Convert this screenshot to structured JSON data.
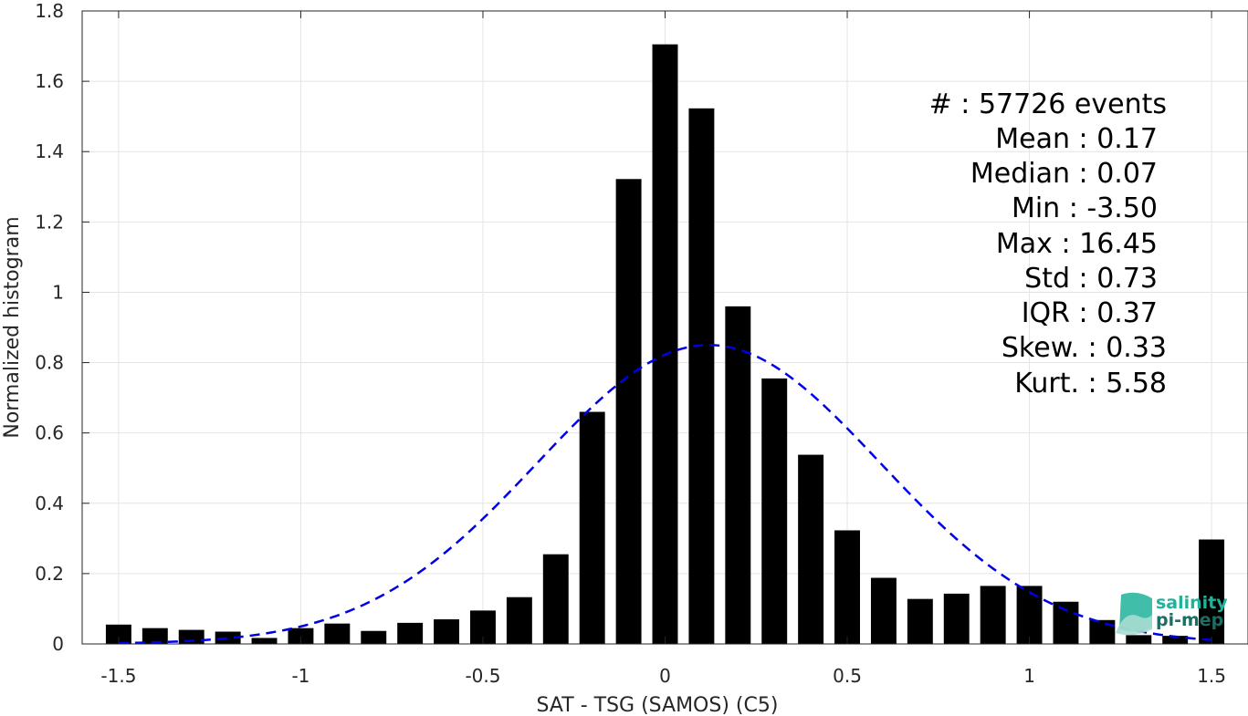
{
  "chart_data": {
    "type": "bar",
    "xlabel": "SAT - TSG (SAMOS) (C5)",
    "ylabel": "Normalized histogram",
    "xlim": [
      -1.6,
      1.6
    ],
    "ylim": [
      0,
      1.8
    ],
    "xticks": [
      -1.5,
      -1,
      -0.5,
      0,
      0.5,
      1,
      1.5
    ],
    "xtick_labels": [
      "-1.5",
      "-1",
      "-0.5",
      "0",
      "0.5",
      "1",
      "1.5"
    ],
    "yticks": [
      0,
      0.2,
      0.4,
      0.6,
      0.8,
      1,
      1.2,
      1.4,
      1.6,
      1.8
    ],
    "ytick_labels": [
      "0",
      "0.2",
      "0.4",
      "0.6",
      "0.8",
      "1",
      "1.2",
      "1.4",
      "1.6",
      "1.8"
    ],
    "grid": true,
    "bar_width": 0.07,
    "bar_color": "#000000",
    "x": [
      -1.5,
      -1.4,
      -1.3,
      -1.2,
      -1.1,
      -1.0,
      -0.9,
      -0.8,
      -0.7,
      -0.6,
      -0.5,
      -0.4,
      -0.3,
      -0.2,
      -0.1,
      0.0,
      0.1,
      0.2,
      0.3,
      0.4,
      0.5,
      0.6,
      0.7,
      0.8,
      0.9,
      1.0,
      1.1,
      1.2,
      1.3,
      1.4,
      1.5
    ],
    "values": [
      0.055,
      0.045,
      0.04,
      0.035,
      0.017,
      0.045,
      0.058,
      0.037,
      0.06,
      0.07,
      0.095,
      0.133,
      0.255,
      0.66,
      1.322,
      1.705,
      1.523,
      0.96,
      0.755,
      0.538,
      0.323,
      0.188,
      0.128,
      0.143,
      0.165,
      0.165,
      0.12,
      0.068,
      0.025,
      0.023,
      0.297
    ],
    "fit_curve": {
      "style": "dashed",
      "color": "#0000e6",
      "mean": 0.12,
      "std": 0.47,
      "peak": 0.85,
      "x_range": [
        -1.5,
        1.5
      ]
    },
    "stats_lines": [
      "#  : 57726 events",
      "Mean : 0.17",
      "Median : 0.07",
      "Min : -3.50",
      "Max : 16.45",
      "Std : 0.73",
      "IQR : 0.37",
      "Skew. : 0.33",
      "Kurt. : 5.58"
    ]
  },
  "logo": {
    "line1": "salinity",
    "line2": "pi-mep",
    "color": "#1fb39a"
  }
}
